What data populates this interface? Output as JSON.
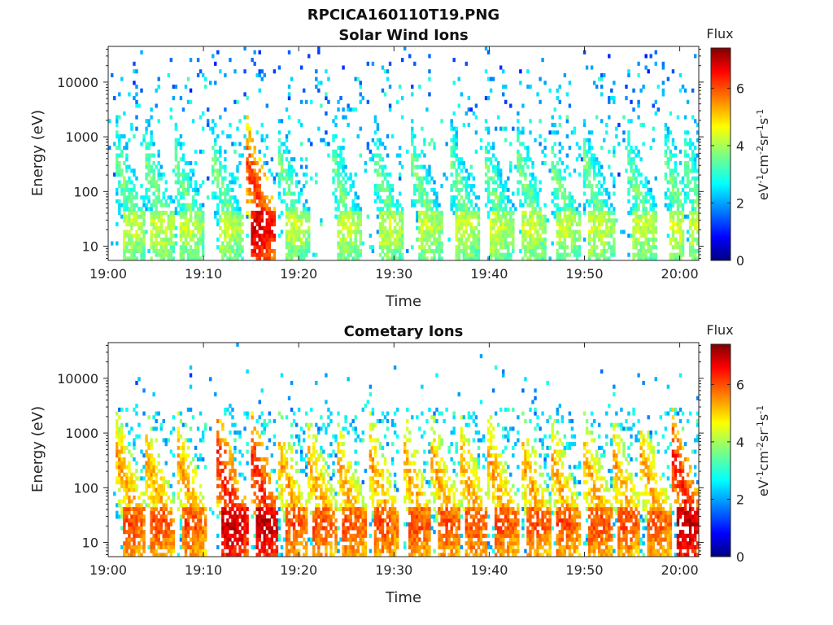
{
  "figure": {
    "title": "RPCICA160110T19.PNG"
  },
  "colors": {
    "colormap": "jet",
    "axis": "#262626",
    "background": "#ffffff"
  },
  "chart_data": [
    {
      "type": "heatmap",
      "title": "Solar Wind Ions",
      "xlabel": "Time",
      "ylabel": "Energy (eV)",
      "x_range": [
        "19:00",
        "20:02"
      ],
      "x_ticks": [
        "19:00",
        "19:10",
        "19:20",
        "19:30",
        "19:40",
        "19:50",
        "20:00"
      ],
      "y_scale": "log",
      "y_range": [
        5.5,
        45000
      ],
      "y_ticks": [
        "10",
        "100",
        "1000",
        "10000"
      ],
      "colorbar": {
        "title": "Flux",
        "label": "eV-1cm-2sr-1s-1",
        "range": [
          0,
          7.4
        ],
        "ticks": [
          "0",
          "2",
          "4",
          "6"
        ]
      },
      "pattern": {
        "burst_minutes": [
          1.5,
          4.5,
          7.5,
          11.5,
          15,
          18.5,
          24,
          28.5,
          32.5,
          36.5,
          40,
          43.5,
          47,
          50.5,
          55,
          59,
          61
        ],
        "peak_log_flux": 4.3,
        "strong_burst_minutes": [
          12,
          15
        ],
        "strong_peak_log_flux": 6.8
      }
    },
    {
      "type": "heatmap",
      "title": "Cometary Ions",
      "xlabel": "Time",
      "ylabel": "Energy (eV)",
      "x_range": [
        "19:00",
        "20:02"
      ],
      "x_ticks": [
        "19:00",
        "19:10",
        "19:20",
        "19:30",
        "19:40",
        "19:50",
        "20:00"
      ],
      "y_scale": "log",
      "y_range": [
        5.5,
        45000
      ],
      "y_ticks": [
        "10",
        "100",
        "1000",
        "10000"
      ],
      "colorbar": {
        "title": "Flux",
        "label": "eV-1cm-2sr-1s-1",
        "range": [
          0,
          7.4
        ],
        "ticks": [
          "0",
          "2",
          "4",
          "6"
        ]
      },
      "pattern": {
        "burst_minutes": [
          1.5,
          4.5,
          7.8,
          12,
          15.5,
          18.5,
          21.5,
          24.5,
          28,
          31.5,
          34.5,
          37.5,
          40.5,
          44,
          47,
          50.5,
          53.5,
          56.5,
          59.8
        ],
        "peak_log_flux": 6.0,
        "strong_burst_minutes": [
          12,
          15.5,
          59.8
        ],
        "strong_peak_log_flux": 7.0
      }
    }
  ]
}
